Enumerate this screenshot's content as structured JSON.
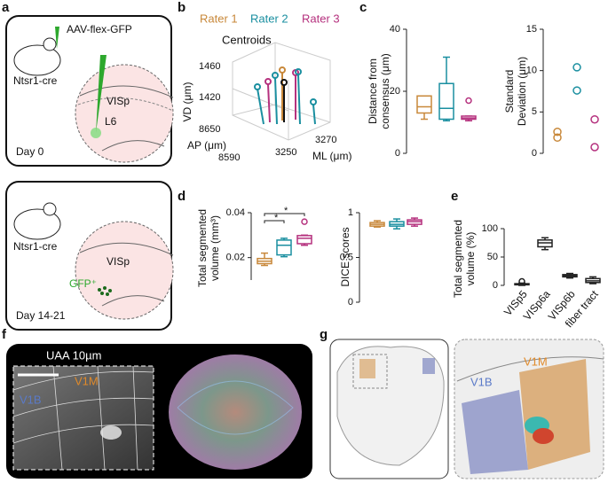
{
  "panel_labels": [
    "a",
    "b",
    "c",
    "d",
    "e",
    "f",
    "g"
  ],
  "panel_a": {
    "virus": "AAV-flex-GFP",
    "mouse_top": "Ntsr1-cre",
    "region_top": "VISp",
    "layer": "L6",
    "day_top": "Day 0",
    "mouse_bottom": "Ntsr1-cre",
    "region_bottom": "VISp",
    "gfp": "GFP⁺",
    "day_bottom": "Day 14-21"
  },
  "panel_b": {
    "legend": [
      "Rater 1",
      "Rater 2",
      "Rater 3"
    ],
    "centroids": "Centroids",
    "vd_label": "VD (μm)",
    "ap_label": "AP (μm)",
    "ml_label": "ML (μm)",
    "vd_ticks": [
      "1460",
      "1420"
    ],
    "ap_ticks": [
      "8650",
      "8590"
    ],
    "ml_ticks": [
      "3270",
      "3250"
    ]
  },
  "panel_f": {
    "title": "UAA 10µm",
    "v1m": "V1M",
    "v1b": "V1B"
  },
  "panel_g": {
    "v1m": "V1M",
    "v1b": "V1B"
  },
  "chart_data": [
    {
      "type": "box",
      "ylabel": [
        "Distance from",
        "consensus (μm)"
      ],
      "categories": [
        null,
        null,
        null
      ],
      "colors": [
        "#c8883a",
        "#1a8fa0",
        "#b5317e"
      ],
      "ylim": [
        0,
        40
      ],
      "yticks": [
        0,
        20,
        40
      ],
      "boxes": [
        {
          "low": 11,
          "q1": 13,
          "median": 15,
          "q3": 18.5,
          "high": 18.5,
          "outliers": []
        },
        {
          "low": 10.5,
          "q1": 11,
          "median": 14.5,
          "q3": 22.5,
          "high": 31,
          "outliers": []
        },
        {
          "low": 10.5,
          "q1": 11,
          "median": 11.4,
          "q3": 12,
          "high": 12,
          "outliers": [
            17
          ]
        }
      ]
    },
    {
      "type": "scatter",
      "ylabel": [
        "Standard",
        "Deviation (μm)"
      ],
      "categories": [
        null,
        null,
        null
      ],
      "colors": [
        "#c8883a",
        "#1a8fa0",
        "#b5317e"
      ],
      "ylim": [
        0,
        15
      ],
      "yticks": [
        0,
        5,
        10,
        15
      ],
      "values": [
        [
          2.6,
          1.9
        ],
        [
          10.4,
          7.6
        ],
        [
          4.1,
          0.75
        ]
      ]
    },
    {
      "type": "box",
      "ylabel": [
        "Total segmented",
        "volume (mm³)"
      ],
      "categories": [
        null,
        null,
        null
      ],
      "colors": [
        "#c8883a",
        "#1a8fa0",
        "#b5317e"
      ],
      "ylim": [
        0.01,
        0.04
      ],
      "yticks": [
        0.02,
        0.04
      ],
      "annotations": [
        "*",
        "*"
      ],
      "boxes": [
        {
          "low": 0.0165,
          "q1": 0.0173,
          "median": 0.0184,
          "q3": 0.0196,
          "high": 0.022,
          "outliers": []
        },
        {
          "low": 0.0204,
          "q1": 0.0212,
          "median": 0.0255,
          "q3": 0.0278,
          "high": 0.0286,
          "outliers": []
        },
        {
          "low": 0.0255,
          "q1": 0.0262,
          "median": 0.0286,
          "q3": 0.0298,
          "high": 0.03,
          "outliers": [
            0.036
          ]
        }
      ]
    },
    {
      "type": "box",
      "ylabel": [
        "DICE scores"
      ],
      "categories": [
        null,
        null,
        null
      ],
      "colors": [
        "#c8883a",
        "#1a8fa0",
        "#b5317e"
      ],
      "ylim": [
        0,
        1
      ],
      "yticks": [
        0,
        0.5,
        1
      ],
      "boxes": [
        {
          "low": 0.84,
          "q1": 0.85,
          "median": 0.87,
          "q3": 0.89,
          "high": 0.91,
          "outliers": []
        },
        {
          "low": 0.82,
          "q1": 0.85,
          "median": 0.87,
          "q3": 0.9,
          "high": 0.93,
          "outliers": []
        },
        {
          "low": 0.85,
          "q1": 0.87,
          "median": 0.9,
          "q3": 0.92,
          "high": 0.94,
          "outliers": []
        }
      ]
    },
    {
      "type": "box",
      "ylabel": [
        "Total segmented",
        "volume (%)"
      ],
      "categories": [
        "VISp5",
        "VISp6a",
        "VISp6b",
        "fiber tract"
      ],
      "colors": [
        "#222222",
        "#222222",
        "#222222",
        "#222222"
      ],
      "ylim": [
        0,
        100
      ],
      "yticks": [
        0,
        50,
        100
      ],
      "boxes": [
        {
          "low": 0,
          "q1": 1,
          "median": 2,
          "q3": 3,
          "high": 4,
          "outliers": [
            7
          ]
        },
        {
          "low": 63,
          "q1": 68,
          "median": 75,
          "q3": 80,
          "high": 84,
          "outliers": []
        },
        {
          "low": 13,
          "q1": 15,
          "median": 17,
          "q3": 19,
          "high": 21,
          "outliers": []
        },
        {
          "low": 3,
          "q1": 5,
          "median": 8,
          "q3": 12,
          "high": 15,
          "outliers": []
        }
      ]
    }
  ]
}
